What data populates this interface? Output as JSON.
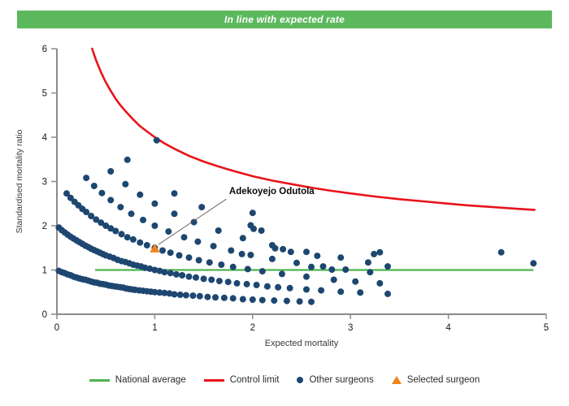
{
  "banner": {
    "text": "In line with expected rate",
    "bg_color": "#5cb85c",
    "text_color": "#ffffff"
  },
  "legend": {
    "items": [
      {
        "label": "National average",
        "type": "line",
        "color": "#4eb44e"
      },
      {
        "label": "Control limit",
        "type": "line",
        "color": "#e8131b"
      },
      {
        "label": "Other surgeons",
        "type": "dot",
        "color": "#1d4770"
      },
      {
        "label": "Selected surgeon",
        "type": "triangle",
        "color": "#f0841c"
      }
    ]
  },
  "chart_data": {
    "type": "scatter",
    "title": "",
    "xlabel": "Expected mortality",
    "ylabel": "Standardised mortality ratio",
    "xlim": [
      0,
      5
    ],
    "ylim": [
      0,
      6
    ],
    "x_ticks": [
      "0",
      "1",
      "2",
      "3",
      "4",
      "5"
    ],
    "y_ticks": [
      "0",
      "1",
      "2",
      "3",
      "4",
      "5",
      "6"
    ],
    "grid": false,
    "axis_color": "#8a8a8a",
    "tick_label_color": "#1a1a1a",
    "axis_label_color": "#3a3a3a",
    "national_average": {
      "y": 1,
      "x_start": 0.39,
      "x_end": 4.87,
      "color": "#4eb44e"
    },
    "control_limit": {
      "color": "#e8131b",
      "points": [
        [
          0.36,
          6.0
        ],
        [
          0.4,
          5.74
        ],
        [
          0.45,
          5.47
        ],
        [
          0.5,
          5.24
        ],
        [
          0.55,
          5.05
        ],
        [
          0.6,
          4.87
        ],
        [
          0.65,
          4.72
        ],
        [
          0.7,
          4.59
        ],
        [
          0.78,
          4.4
        ],
        [
          0.85,
          4.25
        ],
        [
          0.92,
          4.13
        ],
        [
          1.0,
          4.0
        ],
        [
          1.1,
          3.86
        ],
        [
          1.2,
          3.74
        ],
        [
          1.35,
          3.58
        ],
        [
          1.5,
          3.45
        ],
        [
          1.65,
          3.34
        ],
        [
          1.8,
          3.24
        ],
        [
          2.0,
          3.12
        ],
        [
          2.2,
          3.02
        ],
        [
          2.4,
          2.94
        ],
        [
          2.6,
          2.86
        ],
        [
          2.8,
          2.79
        ],
        [
          3.0,
          2.73
        ],
        [
          3.25,
          2.66
        ],
        [
          3.5,
          2.6
        ],
        [
          3.75,
          2.55
        ],
        [
          4.0,
          2.5
        ],
        [
          4.2,
          2.46
        ],
        [
          4.4,
          2.43
        ],
        [
          4.65,
          2.39
        ],
        [
          4.88,
          2.36
        ]
      ]
    },
    "other_surgeons": {
      "color": "#1d4770",
      "marker_radius": 4,
      "points": [
        [
          0.02,
          0.98
        ],
        [
          0.05,
          0.95
        ],
        [
          0.08,
          0.93
        ],
        [
          0.11,
          0.9
        ],
        [
          0.14,
          0.88
        ],
        [
          0.17,
          0.85
        ],
        [
          0.2,
          0.83
        ],
        [
          0.23,
          0.81
        ],
        [
          0.26,
          0.79
        ],
        [
          0.29,
          0.78
        ],
        [
          0.32,
          0.76
        ],
        [
          0.35,
          0.74
        ],
        [
          0.38,
          0.72
        ],
        [
          0.41,
          0.71
        ],
        [
          0.44,
          0.69
        ],
        [
          0.47,
          0.68
        ],
        [
          0.5,
          0.67
        ],
        [
          0.53,
          0.65
        ],
        [
          0.56,
          0.64
        ],
        [
          0.59,
          0.63
        ],
        [
          0.62,
          0.62
        ],
        [
          0.65,
          0.61
        ],
        [
          0.68,
          0.6
        ],
        [
          0.71,
          0.58
        ],
        [
          0.74,
          0.57
        ],
        [
          0.77,
          0.56
        ],
        [
          0.8,
          0.55
        ],
        [
          0.84,
          0.54
        ],
        [
          0.88,
          0.53
        ],
        [
          0.92,
          0.52
        ],
        [
          0.96,
          0.51
        ],
        [
          1.0,
          0.5
        ],
        [
          1.05,
          0.49
        ],
        [
          1.1,
          0.48
        ],
        [
          1.15,
          0.47
        ],
        [
          1.2,
          0.45
        ],
        [
          1.26,
          0.44
        ],
        [
          1.32,
          0.43
        ],
        [
          1.39,
          0.42
        ],
        [
          1.46,
          0.41
        ],
        [
          1.54,
          0.39
        ],
        [
          1.62,
          0.38
        ],
        [
          1.71,
          0.37
        ],
        [
          1.8,
          0.36
        ],
        [
          1.9,
          0.34
        ],
        [
          2.0,
          0.33
        ],
        [
          2.1,
          0.32
        ],
        [
          2.22,
          0.31
        ],
        [
          2.35,
          0.3
        ],
        [
          2.48,
          0.29
        ],
        [
          2.6,
          0.28
        ],
        [
          0.02,
          1.96
        ],
        [
          0.05,
          1.9
        ],
        [
          0.08,
          1.85
        ],
        [
          0.11,
          1.8
        ],
        [
          0.14,
          1.75
        ],
        [
          0.17,
          1.71
        ],
        [
          0.2,
          1.67
        ],
        [
          0.23,
          1.63
        ],
        [
          0.26,
          1.59
        ],
        [
          0.29,
          1.55
        ],
        [
          0.32,
          1.52
        ],
        [
          0.35,
          1.48
        ],
        [
          0.38,
          1.45
        ],
        [
          0.41,
          1.42
        ],
        [
          0.44,
          1.39
        ],
        [
          0.47,
          1.36
        ],
        [
          0.5,
          1.33
        ],
        [
          0.54,
          1.3
        ],
        [
          0.58,
          1.27
        ],
        [
          0.62,
          1.23
        ],
        [
          0.66,
          1.2
        ],
        [
          0.7,
          1.18
        ],
        [
          0.74,
          1.15
        ],
        [
          0.78,
          1.12
        ],
        [
          0.82,
          1.1
        ],
        [
          0.86,
          1.08
        ],
        [
          0.9,
          1.05
        ],
        [
          0.95,
          1.03
        ],
        [
          1.0,
          1.0
        ],
        [
          1.05,
          0.98
        ],
        [
          1.1,
          0.95
        ],
        [
          1.16,
          0.93
        ],
        [
          1.22,
          0.9
        ],
        [
          1.28,
          0.88
        ],
        [
          1.35,
          0.85
        ],
        [
          1.42,
          0.83
        ],
        [
          1.5,
          0.8
        ],
        [
          1.58,
          0.78
        ],
        [
          1.66,
          0.75
        ],
        [
          1.75,
          0.73
        ],
        [
          1.84,
          0.7
        ],
        [
          1.94,
          0.68
        ],
        [
          2.04,
          0.66
        ],
        [
          2.15,
          0.63
        ],
        [
          2.26,
          0.61
        ],
        [
          2.38,
          0.59
        ],
        [
          2.55,
          0.56
        ],
        [
          2.7,
          0.54
        ],
        [
          2.9,
          0.51
        ],
        [
          3.1,
          0.49
        ],
        [
          3.38,
          0.46
        ],
        [
          0.1,
          2.73
        ],
        [
          0.14,
          2.63
        ],
        [
          0.18,
          2.54
        ],
        [
          0.22,
          2.46
        ],
        [
          0.26,
          2.38
        ],
        [
          0.3,
          2.31
        ],
        [
          0.35,
          2.22
        ],
        [
          0.4,
          2.14
        ],
        [
          0.45,
          2.07
        ],
        [
          0.5,
          2.0
        ],
        [
          0.55,
          1.94
        ],
        [
          0.6,
          1.88
        ],
        [
          0.66,
          1.81
        ],
        [
          0.72,
          1.74
        ],
        [
          0.78,
          1.69
        ],
        [
          0.85,
          1.62
        ],
        [
          0.92,
          1.56
        ],
        [
          1.0,
          1.5
        ],
        [
          1.08,
          1.44
        ],
        [
          1.16,
          1.39
        ],
        [
          1.25,
          1.33
        ],
        [
          1.35,
          1.28
        ],
        [
          1.45,
          1.22
        ],
        [
          1.56,
          1.17
        ],
        [
          1.68,
          1.12
        ],
        [
          1.8,
          1.07
        ],
        [
          1.95,
          1.02
        ],
        [
          2.1,
          0.97
        ],
        [
          2.3,
          0.91
        ],
        [
          2.55,
          0.85
        ],
        [
          2.83,
          0.78
        ],
        [
          3.05,
          0.74
        ],
        [
          3.3,
          0.7
        ],
        [
          0.3,
          3.08
        ],
        [
          0.38,
          2.9
        ],
        [
          0.46,
          2.74
        ],
        [
          0.55,
          2.58
        ],
        [
          0.65,
          2.42
        ],
        [
          0.76,
          2.27
        ],
        [
          0.88,
          2.13
        ],
        [
          1.0,
          2.0
        ],
        [
          1.14,
          1.87
        ],
        [
          1.3,
          1.74
        ],
        [
          1.44,
          1.64
        ],
        [
          1.6,
          1.54
        ],
        [
          1.78,
          1.44
        ],
        [
          1.98,
          1.34
        ],
        [
          2.2,
          1.25
        ],
        [
          2.45,
          1.16
        ],
        [
          2.72,
          1.08
        ],
        [
          2.95,
          1.01
        ],
        [
          3.2,
          0.95
        ],
        [
          0.55,
          3.23
        ],
        [
          0.7,
          2.94
        ],
        [
          0.85,
          2.7
        ],
        [
          1.0,
          2.5
        ],
        [
          1.2,
          2.27
        ],
        [
          1.4,
          2.08
        ],
        [
          1.65,
          1.89
        ],
        [
          1.9,
          1.72
        ],
        [
          2.2,
          1.56
        ],
        [
          2.55,
          1.41
        ],
        [
          2.9,
          1.28
        ],
        [
          0.72,
          3.49
        ],
        [
          1.2,
          2.73
        ],
        [
          1.48,
          2.42
        ],
        [
          1.98,
          2.01
        ],
        [
          3.3,
          1.4
        ],
        [
          1.02,
          3.93
        ],
        [
          1.89,
          1.36
        ],
        [
          2.0,
          2.29
        ],
        [
          2.01,
          1.93
        ],
        [
          2.09,
          1.89
        ],
        [
          2.23,
          1.49
        ],
        [
          2.31,
          1.47
        ],
        [
          2.39,
          1.41
        ],
        [
          2.6,
          1.07
        ],
        [
          2.66,
          1.32
        ],
        [
          2.81,
          1.01
        ],
        [
          3.18,
          1.17
        ],
        [
          3.24,
          1.36
        ],
        [
          3.38,
          1.08
        ],
        [
          4.54,
          1.4
        ],
        [
          4.87,
          1.15
        ]
      ]
    },
    "selected_surgeon": {
      "label": "Adekoyejo Odutola",
      "x": 1.0,
      "y": 1.47,
      "color": "#f0841c",
      "label_pos": {
        "x": 1.76,
        "y": 2.72
      },
      "annotation_line": {
        "x1": 1.73,
        "y1": 2.6,
        "x2": 1.04,
        "y2": 1.58
      }
    }
  }
}
